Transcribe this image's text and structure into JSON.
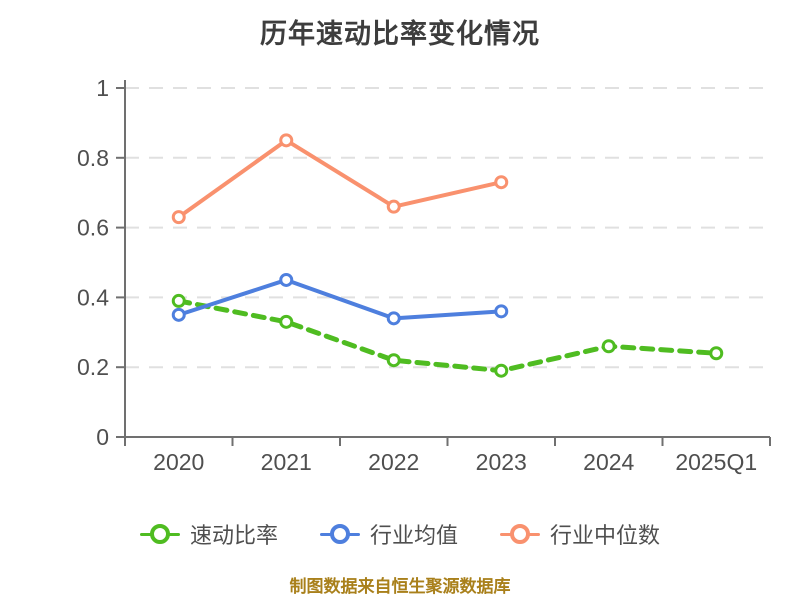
{
  "title": "历年速动比率变化情况",
  "footer": "制图数据来自恒生聚源数据库",
  "colors": {
    "title_text": "#3d3d3d",
    "axis_line": "#707070",
    "tick_text": "#4f4f4f",
    "gridline": "#e0e0e0",
    "legend_text": "#4f4f4f",
    "footer_text": "#a9801b",
    "series_quick_ratio": "#4fbc21",
    "series_industry_avg": "#4e7fde",
    "series_industry_median": "#f9916e",
    "marker_fill": "#ffffff"
  },
  "chart_data": {
    "type": "line",
    "title": "历年速动比率变化情况",
    "categories": [
      "2020",
      "2021",
      "2022",
      "2023",
      "2024",
      "2025Q1"
    ],
    "series": [
      {
        "name": "速动比率",
        "color": "#4fbc21",
        "line_style": "dashed",
        "values": [
          0.39,
          0.33,
          0.22,
          0.19,
          0.26,
          0.24
        ]
      },
      {
        "name": "行业均值",
        "color": "#4e7fde",
        "line_style": "solid",
        "values": [
          0.35,
          0.45,
          0.34,
          0.36,
          null,
          null
        ]
      },
      {
        "name": "行业中位数",
        "color": "#f9916e",
        "line_style": "solid",
        "values": [
          0.63,
          0.85,
          0.66,
          0.73,
          null,
          null
        ]
      }
    ],
    "xlabel": "",
    "ylabel": "",
    "ylim": [
      0,
      1
    ],
    "yticks": [
      0,
      0.2,
      0.4,
      0.6,
      0.8,
      1
    ],
    "ytick_labels": [
      "0",
      "0.2",
      "0.4",
      "0.6",
      "0.8",
      "1"
    ],
    "grid": true,
    "grid_style": "dashed",
    "legend_position": "bottom",
    "source_note": "制图数据来自恒生聚源数据库"
  }
}
